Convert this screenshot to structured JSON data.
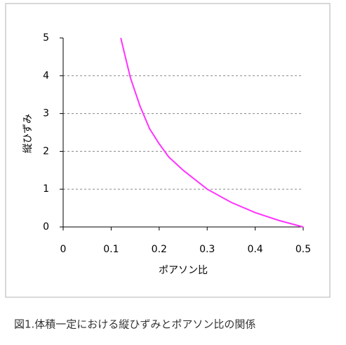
{
  "chart_data": {
    "type": "line",
    "x_label": "ポアソン比",
    "y_label": "縦ひずみ",
    "caption": "図1.体積一定における縦ひずみとポアソン比の関係",
    "x": [
      0.12,
      0.14,
      0.16,
      0.18,
      0.2,
      0.22,
      0.25,
      0.3,
      0.35,
      0.4,
      0.45,
      0.5
    ],
    "series": [
      {
        "color": "#ff33ff",
        "values": [
          5,
          3.95,
          3.2,
          2.6,
          2.2,
          1.85,
          1.5,
          1.0,
          0.65,
          0.38,
          0.17,
          0
        ]
      }
    ],
    "xlim": [
      0,
      0.5
    ],
    "xticks": [
      0,
      0.1,
      0.2,
      0.3,
      0.4,
      0.5
    ],
    "ylim": [
      0,
      5
    ],
    "yticks": [
      0,
      1,
      2,
      3,
      4,
      5
    ],
    "grid": true
  }
}
